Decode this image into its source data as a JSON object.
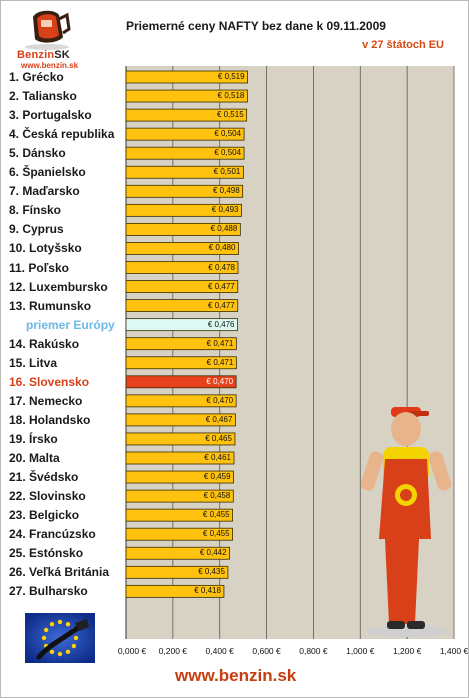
{
  "logo": {
    "brand": "Benzin",
    "brand_suffix": "SK",
    "url": "www.benzin.sk",
    "icon": "fuel-pump-logo-icon"
  },
  "footer": {
    "url": "www.benzin.sk"
  },
  "colors": {
    "bar": "#ffc20e",
    "bar_stroke": "#3a2c00",
    "highlight_bar": "#e8421c",
    "average_bar": "#ddfaf2",
    "plot_bg": "#d7d2c4",
    "gridline": "#5a5a5a",
    "highlight_text": "#d8401a",
    "average_text": "#6cb8e6"
  },
  "decorations": {
    "flag": "eu-flag-fuel-nozzle-icon",
    "mascot": "mechanic-mascot-icon"
  },
  "chart_data": {
    "type": "bar",
    "orientation": "horizontal",
    "title": "Priemerné ceny NAFTY bez dane k 09.11.2009",
    "subtitle": "v 27 štátoch EU",
    "xlim": [
      0,
      1.4
    ],
    "x_ticks": [
      "0,000 €",
      "0,200 €",
      "0,400 €",
      "0,600 €",
      "0,800 €",
      "1,000 €",
      "1,200 €",
      "1,400 €"
    ],
    "grid": true,
    "categories": [
      "1. Grécko",
      "2. Taliansko",
      "3. Portugalsko",
      "4. Česká republika",
      "5. Dánsko",
      "6. Španielsko",
      "7. Maďarsko",
      "8. Fínsko",
      "9. Cyprus",
      "10. Lotyšsko",
      "11. Poľsko",
      "12. Luxembursko",
      "13. Rumunsko",
      "priemer Európy",
      "14. Rakúsko",
      "15. Litva",
      "16. Slovensko",
      "17. Nemecko",
      "18. Holandsko",
      "19. Írsko",
      "20. Malta",
      "21. Švédsko",
      "22. Slovinsko",
      "23. Belgicko",
      "24. Francúzsko",
      "25. Estónsko",
      "26. Veľká Británia",
      "27. Bulharsko"
    ],
    "values": [
      0.519,
      0.518,
      0.515,
      0.504,
      0.504,
      0.501,
      0.498,
      0.493,
      0.488,
      0.48,
      0.478,
      0.477,
      0.477,
      0.476,
      0.471,
      0.471,
      0.47,
      0.47,
      0.467,
      0.465,
      0.461,
      0.459,
      0.458,
      0.455,
      0.455,
      0.442,
      0.435,
      0.418
    ],
    "value_labels": [
      "€ 0,519",
      "€ 0,518",
      "€ 0,515",
      "€ 0,504",
      "€ 0,504",
      "€ 0,501",
      "€ 0,498",
      "€ 0,493",
      "€ 0,488",
      "€ 0,480",
      "€ 0,478",
      "€ 0,477",
      "€ 0,477",
      "€ 0,476",
      "€ 0,471",
      "€ 0,471",
      "€ 0,470",
      "€ 0,470",
      "€ 0,467",
      "€ 0,465",
      "€ 0,461",
      "€ 0,459",
      "€ 0,458",
      "€ 0,455",
      "€ 0,455",
      "€ 0,442",
      "€ 0,435",
      "€ 0,418"
    ],
    "highlight_category": "16. Slovensko",
    "average_category": "priemer Európy"
  }
}
